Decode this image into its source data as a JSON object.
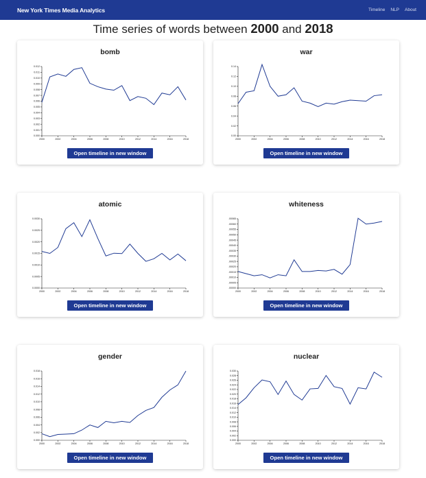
{
  "navbar": {
    "brand": "New York Times Media Analytics",
    "links": [
      "Timeline",
      "NLP",
      "About"
    ]
  },
  "page": {
    "title_prefix": "Time series of words between",
    "year_start": "2000",
    "title_and": "and",
    "year_end": "2018"
  },
  "button_label": "Open timeline in new window",
  "accent_color": "#1f3a93",
  "chart_data": [
    {
      "type": "line",
      "title": "bomb",
      "x": [
        2000,
        2001,
        2002,
        2003,
        2004,
        2005,
        2006,
        2007,
        2008,
        2009,
        2010,
        2011,
        2012,
        2013,
        2014,
        2015,
        2016,
        2017,
        2018
      ],
      "y": [
        0.0058,
        0.0102,
        0.0107,
        0.0103,
        0.0115,
        0.0118,
        0.0091,
        0.0085,
        0.0081,
        0.0079,
        0.0087,
        0.0061,
        0.0068,
        0.0065,
        0.0054,
        0.0074,
        0.0071,
        0.0085,
        0.0062
      ],
      "xticks": [
        "2000",
        "2002",
        "2004",
        "2006",
        "2008",
        "2010",
        "2012",
        "2014",
        "2016",
        "2018"
      ],
      "yticks": [
        "0.000",
        "0.001",
        "0.002",
        "0.003",
        "0.004",
        "0.005",
        "0.006",
        "0.007",
        "0.008",
        "0.009",
        "0.010",
        "0.011",
        "0.012"
      ],
      "ylim": [
        0,
        0.012
      ]
    },
    {
      "type": "line",
      "title": "war",
      "x": [
        2000,
        2001,
        2002,
        2003,
        2004,
        2005,
        2006,
        2007,
        2008,
        2009,
        2010,
        2011,
        2012,
        2013,
        2014,
        2015,
        2016,
        2017,
        2018
      ],
      "y": [
        0.065,
        0.088,
        0.091,
        0.144,
        0.1,
        0.08,
        0.083,
        0.097,
        0.07,
        0.066,
        0.059,
        0.066,
        0.064,
        0.069,
        0.072,
        0.071,
        0.07,
        0.081,
        0.083
      ],
      "xticks": [
        "2000",
        "2002",
        "2004",
        "2006",
        "2008",
        "2010",
        "2012",
        "2014",
        "2016",
        "2018"
      ],
      "yticks": [
        "0.00",
        "0.02",
        "0.04",
        "0.06",
        "0.08",
        "0.10",
        "0.12",
        "0.14"
      ],
      "ylim": [
        0,
        0.14
      ]
    },
    {
      "type": "line",
      "title": "atomic",
      "x": [
        2000,
        2001,
        2002,
        2003,
        2004,
        2005,
        2006,
        2007,
        2008,
        2009,
        2010,
        2011,
        2012,
        2013,
        2014,
        2015,
        2016,
        2017,
        2018
      ],
      "y": [
        0.00185,
        0.00175,
        0.00205,
        0.003,
        0.0033,
        0.0026,
        0.00345,
        0.0025,
        0.00162,
        0.00176,
        0.00174,
        0.00222,
        0.00175,
        0.00135,
        0.00148,
        0.00175,
        0.00142,
        0.00172,
        0.00138
      ],
      "xticks": [
        "2000",
        "2002",
        "2004",
        "2006",
        "2008",
        "2010",
        "2012",
        "2014",
        "2016",
        "2018"
      ],
      "yticks": [
        "0.0000",
        "0.0005",
        "0.0010",
        "0.0015",
        "0.0020",
        "0.0025",
        "0.0030"
      ],
      "ylim": [
        0,
        0.0035
      ]
    },
    {
      "type": "line",
      "title": "whiteness",
      "x": [
        2000,
        2001,
        2002,
        2003,
        2004,
        2005,
        2006,
        2007,
        2008,
        2009,
        2010,
        2011,
        2012,
        2013,
        2014,
        2015,
        2016,
        2017,
        2018
      ],
      "y": [
        0.000155,
        0.000135,
        0.000115,
        0.000125,
        9.5e-05,
        0.000125,
        0.000115,
        0.000265,
        0.000155,
        0.000155,
        0.000165,
        0.00016,
        0.000175,
        0.00013,
        0.00022,
        0.000655,
        0.0006,
        0.00061,
        0.000625
      ],
      "xticks": [
        "2000",
        "2002",
        "2004",
        "2006",
        "2008",
        "2010",
        "2012",
        "2014",
        "2016",
        "2018"
      ],
      "yticks": [
        ".00000",
        ".00005",
        ".00010",
        ".00015",
        ".00020",
        ".00025",
        ".00030",
        ".00035",
        ".00040",
        ".00045",
        ".00050",
        ".00055",
        ".00060",
        ".00065"
      ],
      "ylim": [
        0,
        0.00065
      ]
    },
    {
      "type": "line",
      "title": "gender",
      "x": [
        2000,
        2001,
        2002,
        2003,
        2004,
        2005,
        2006,
        2007,
        2008,
        2009,
        2010,
        2011,
        2012,
        2013,
        2014,
        2015,
        2016,
        2017,
        2018
      ],
      "y": [
        0.0018,
        0.001,
        0.0016,
        0.0017,
        0.0018,
        0.0028,
        0.0042,
        0.0035,
        0.0052,
        0.0048,
        0.0052,
        0.0049,
        0.0068,
        0.0082,
        0.009,
        0.0118,
        0.0138,
        0.0152,
        0.019
      ],
      "xticks": [
        "2000",
        "2002",
        "2004",
        "2006",
        "2008",
        "2010",
        "2012",
        "2014",
        "2016",
        "2018"
      ],
      "yticks": [
        "0.000",
        "0.002",
        "0.004",
        "0.006",
        "0.008",
        "0.010",
        "0.012",
        "0.014",
        "0.016",
        "0.018"
      ],
      "ylim": [
        0,
        0.019
      ]
    },
    {
      "type": "line",
      "title": "nuclear",
      "x": [
        2000,
        2001,
        2002,
        2003,
        2004,
        2005,
        2006,
        2007,
        2008,
        2009,
        2010,
        2011,
        2012,
        2013,
        2014,
        2015,
        2016,
        2017,
        2018
      ],
      "y": [
        0.016,
        0.019,
        0.0235,
        0.027,
        0.0262,
        0.0205,
        0.0265,
        0.0205,
        0.018,
        0.023,
        0.0232,
        0.029,
        0.024,
        0.0232,
        0.0162,
        0.0235,
        0.023,
        0.0305,
        0.0282
      ],
      "xticks": [
        "2000",
        "2002",
        "2004",
        "2006",
        "2008",
        "2010",
        "2012",
        "2014",
        "2016",
        "2018"
      ],
      "yticks": [
        "0.000",
        "0.002",
        "0.004",
        "0.006",
        "0.008",
        "0.010",
        "0.012",
        "0.014",
        "0.016",
        "0.018",
        "0.020",
        "0.022",
        "0.024",
        "0.026",
        "0.028",
        "0.030"
      ],
      "ylim": [
        0,
        0.031
      ]
    }
  ]
}
